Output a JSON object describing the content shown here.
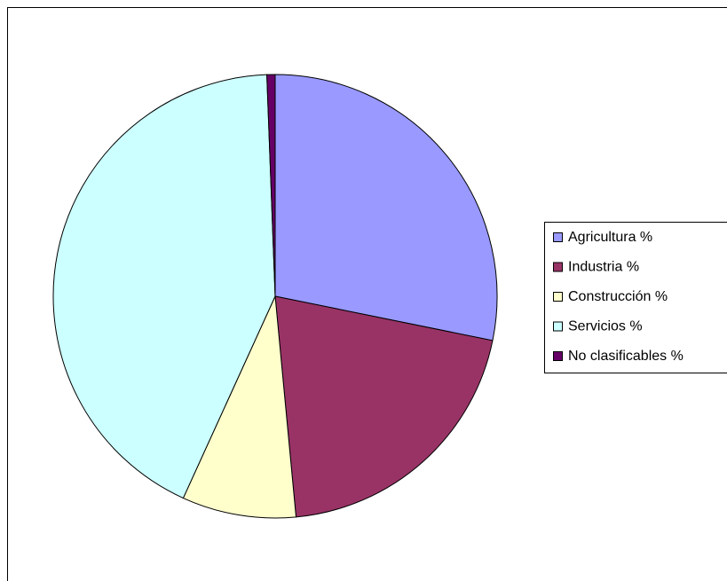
{
  "chart_data": {
    "type": "pie",
    "categories": [
      "Agricultura %",
      "Industria %",
      "Construcción %",
      "Servicios %",
      "No clasificables %"
    ],
    "values": [
      28.2,
      20.3,
      8.3,
      42.6,
      0.6
    ],
    "colors": [
      "#9999ff",
      "#993366",
      "#ffffcc",
      "#ccffff",
      "#660066"
    ],
    "legend": "right"
  }
}
